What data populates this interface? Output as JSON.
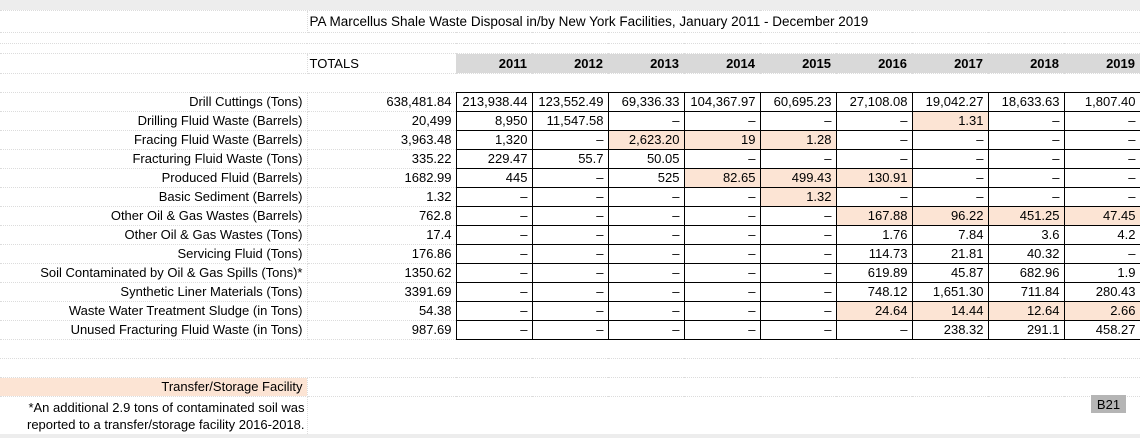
{
  "sheet": {
    "title": "PA Marcellus Shale Waste Disposal in/by New York Facilities, January 2011 - December 2019",
    "totals_header": "TOTALS",
    "years": [
      "2011",
      "2012",
      "2013",
      "2014",
      "2015",
      "2016",
      "2017",
      "2018",
      "2019"
    ],
    "rows": [
      {
        "label": "Drill Cuttings (Tons)",
        "total": "638,481.84",
        "values": [
          "213,938.44",
          "123,552.49",
          "69,336.33",
          "104,367.97",
          "60,695.23",
          "27,108.08",
          "19,042.27",
          "18,633.63",
          "1,807.40"
        ],
        "highlights": []
      },
      {
        "label": "Drilling Fluid Waste (Barrels)",
        "total": "20,499",
        "values": [
          "8,950",
          "11,547.58",
          "–",
          "–",
          "–",
          "–",
          "1.31",
          "–",
          "–"
        ],
        "highlights": [
          6
        ]
      },
      {
        "label": "Fracing Fluid Waste (Barrels)",
        "total": "3,963.48",
        "values": [
          "1,320",
          "–",
          "2,623.20",
          "19",
          "1.28",
          "–",
          "–",
          "–",
          "–"
        ],
        "highlights": [
          2,
          3,
          4
        ]
      },
      {
        "label": "Fracturing Fluid Waste (Tons)",
        "total": "335.22",
        "values": [
          "229.47",
          "55.7",
          "50.05",
          "–",
          "–",
          "–",
          "–",
          "–",
          "–"
        ],
        "highlights": []
      },
      {
        "label": "Produced Fluid (Barrels)",
        "total": "1682.99",
        "values": [
          "445",
          "–",
          "525",
          "82.65",
          "499.43",
          "130.91",
          "–",
          "–",
          "–"
        ],
        "highlights": [
          3,
          4,
          5
        ]
      },
      {
        "label": "Basic Sediment (Barrels)",
        "total": "1.32",
        "values": [
          "–",
          "–",
          "–",
          "–",
          "1.32",
          "–",
          "–",
          "–",
          "–"
        ],
        "highlights": [
          4
        ]
      },
      {
        "label": "Other Oil & Gas Wastes (Barrels)",
        "total": "762.8",
        "values": [
          "–",
          "–",
          "–",
          "–",
          "–",
          "167.88",
          "96.22",
          "451.25",
          "47.45"
        ],
        "highlights": [
          5,
          6,
          7,
          8
        ]
      },
      {
        "label": "Other Oil & Gas Wastes (Tons)",
        "total": "17.4",
        "values": [
          "–",
          "–",
          "–",
          "–",
          "–",
          "1.76",
          "7.84",
          "3.6",
          "4.2"
        ],
        "highlights": []
      },
      {
        "label": "Servicing Fluid (Tons)",
        "total": "176.86",
        "values": [
          "–",
          "–",
          "–",
          "–",
          "–",
          "114.73",
          "21.81",
          "40.32",
          "–"
        ],
        "highlights": []
      },
      {
        "label": "Soil Contaminated by Oil & Gas Spills (Tons)*",
        "total": "1350.62",
        "values": [
          "–",
          "–",
          "–",
          "–",
          "–",
          "619.89",
          "45.87",
          "682.96",
          "1.9"
        ],
        "highlights": []
      },
      {
        "label": "Synthetic Liner Materials (Tons)",
        "total": "3391.69",
        "values": [
          "–",
          "–",
          "–",
          "–",
          "–",
          "748.12",
          "1,651.30",
          "711.84",
          "280.43"
        ],
        "highlights": []
      },
      {
        "label": "Waste Water Treatment Sludge (in Tons)",
        "total": "54.38",
        "values": [
          "–",
          "–",
          "–",
          "–",
          "–",
          "24.64",
          "14.44",
          "12.64",
          "2.66"
        ],
        "highlights": [
          5,
          6,
          7,
          8
        ]
      },
      {
        "label": "Unused Fracturing Fluid Waste (in Tons)",
        "total": "987.69",
        "values": [
          "–",
          "–",
          "–",
          "–",
          "–",
          "–",
          "238.32",
          "291.1",
          "458.27"
        ],
        "highlights": []
      }
    ],
    "transfer_label": "Transfer/Storage Facility",
    "footnote": "*An additional 2.9 tons of contaminated soil was reported to a transfer/storage facility 2016-2018.",
    "cell_ref": "B21",
    "colors": {
      "header_bg": "#d9d9d9",
      "highlight_bg": "#fce4d4",
      "cellref_bg": "#b5b5b5"
    }
  }
}
